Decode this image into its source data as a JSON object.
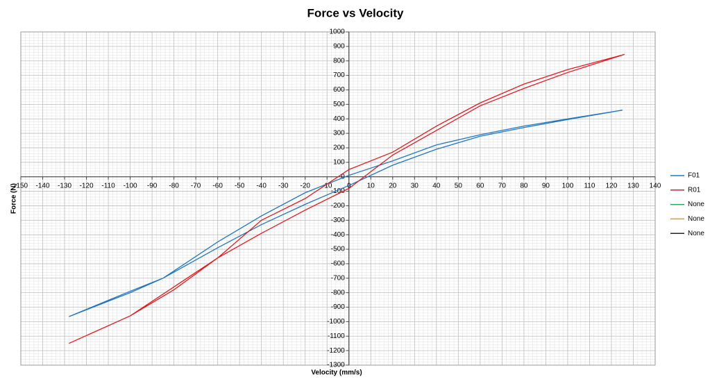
{
  "chart_data": {
    "type": "line",
    "title": "Force vs Velocity",
    "x_label": "Velocity (mm/s)",
    "y_label": "Force (N)",
    "xlim": [
      -150,
      140
    ],
    "ylim": [
      -1300,
      1000
    ],
    "xticks": [
      -150,
      -140,
      -130,
      -120,
      -110,
      -100,
      -90,
      -80,
      -70,
      -60,
      -50,
      -40,
      -30,
      -20,
      -10,
      0,
      10,
      20,
      30,
      40,
      50,
      60,
      70,
      80,
      90,
      100,
      110,
      120,
      130,
      140
    ],
    "yticks": [
      -1300,
      -1200,
      -1100,
      -1000,
      -900,
      -800,
      -700,
      -600,
      -500,
      -400,
      -300,
      -200,
      -100,
      0,
      100,
      200,
      300,
      400,
      500,
      600,
      700,
      800,
      900,
      1000
    ],
    "grid": true,
    "minor_grid": true,
    "legend": "right",
    "series": [
      {
        "name": "F01",
        "color": "#1f77c4",
        "x": [
          -128,
          -100,
          -85,
          -60,
          -40,
          -20,
          0,
          20,
          40,
          60,
          80,
          100,
          125,
          100,
          80,
          60,
          40,
          20,
          0,
          -20,
          -40,
          -60,
          -85,
          -100,
          -128
        ],
        "values": [
          -965,
          -800,
          -700,
          -450,
          -270,
          -110,
          10,
          110,
          220,
          290,
          350,
          400,
          460,
          395,
          340,
          280,
          190,
          80,
          -60,
          -190,
          -330,
          -490,
          -700,
          -790,
          -965
        ]
      },
      {
        "name": "R01",
        "color": "#e31a1c",
        "x": [
          -128,
          -100,
          -80,
          -60,
          -40,
          -20,
          0,
          20,
          40,
          60,
          80,
          100,
          126,
          100,
          80,
          60,
          40,
          20,
          0,
          -20,
          -40,
          -60,
          -80,
          -100,
          -128
        ],
        "values": [
          -1150,
          -960,
          -780,
          -560,
          -300,
          -150,
          50,
          170,
          350,
          510,
          640,
          740,
          845,
          720,
          610,
          490,
          320,
          150,
          -80,
          -230,
          -390,
          -560,
          -760,
          -960,
          -1150
        ]
      },
      {
        "name": "None",
        "color": "#2ca25f",
        "x": [],
        "values": []
      },
      {
        "name": "None",
        "color": "#f28e2b",
        "x": [],
        "values": []
      },
      {
        "name": "None",
        "color": "#222222",
        "x": [],
        "values": []
      }
    ]
  }
}
